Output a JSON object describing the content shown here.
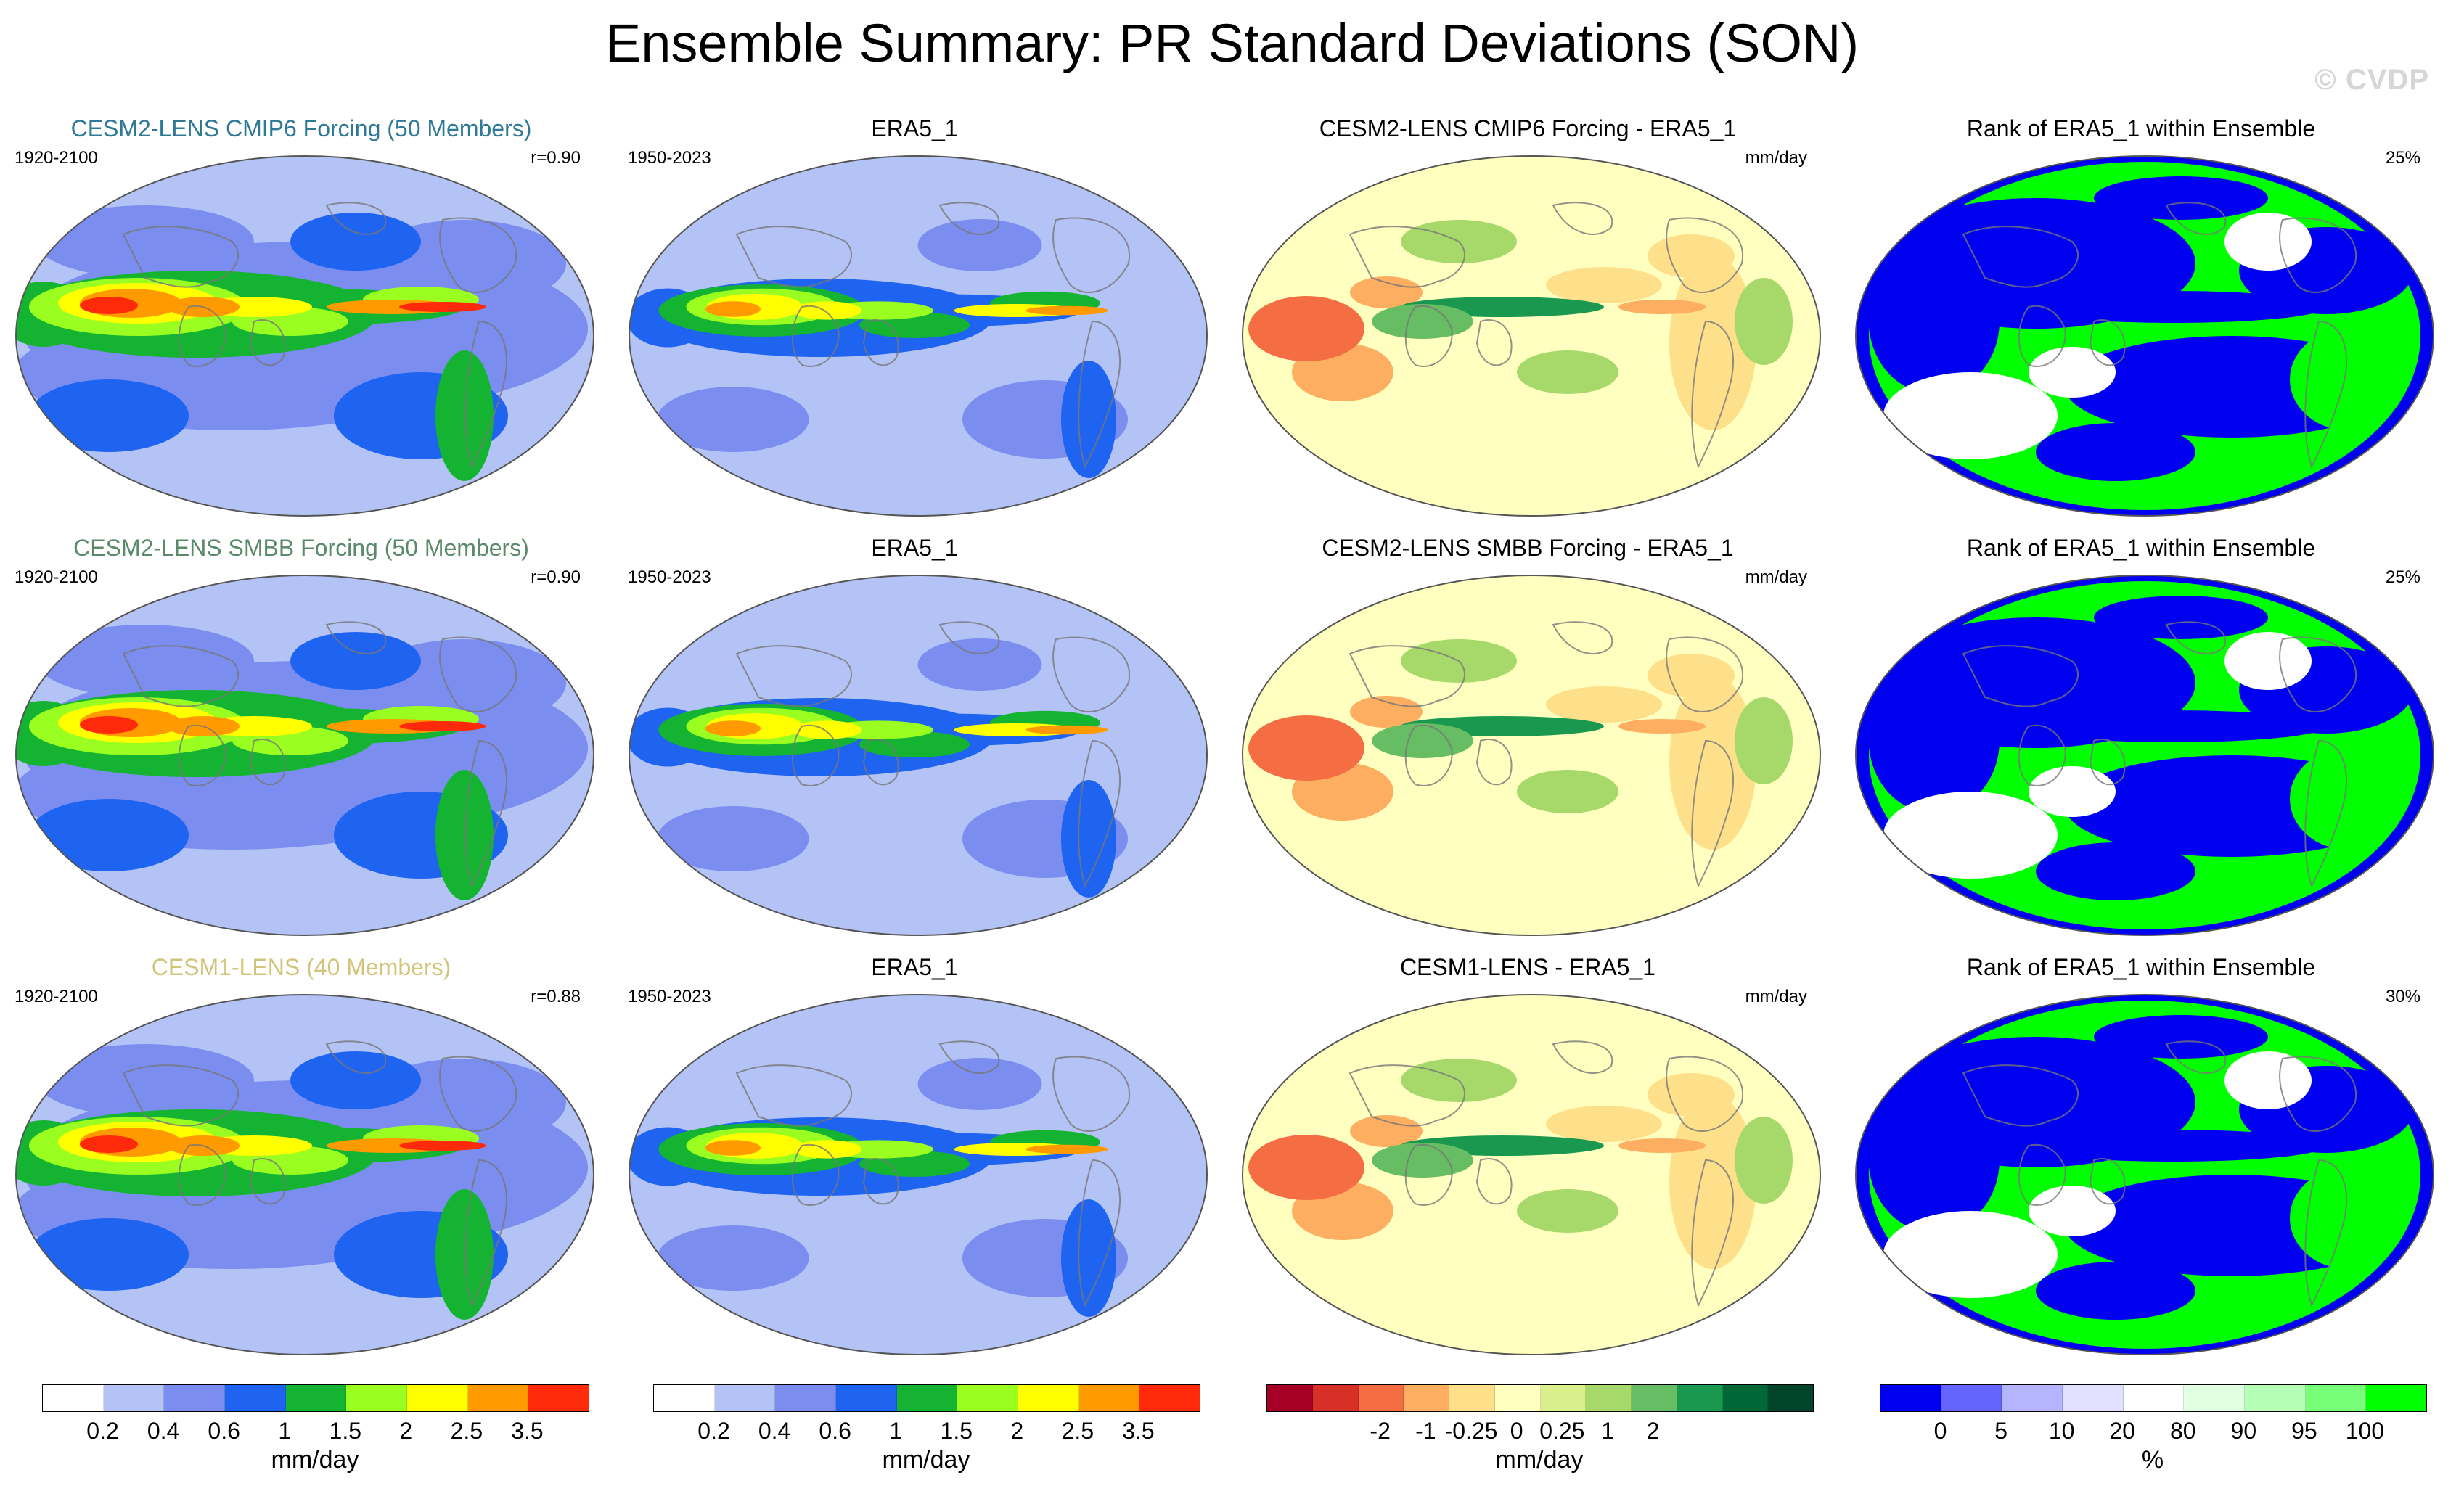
{
  "title": "Ensemble Summary: PR Standard Deviations (SON)",
  "watermark": "© CVDP",
  "rows": [
    {
      "model": {
        "title": "CESM2-LENS CMIP6 Forcing (50 Members)",
        "title_color": "#2e7a96",
        "period": "1920-2100",
        "corr": "r=0.90"
      },
      "obs": {
        "title": "ERA5_1",
        "period": "1950-2023"
      },
      "diff": {
        "title": "CESM2-LENS CMIP6 Forcing - ERA5_1",
        "unit": "mm/day"
      },
      "rank": {
        "title": "Rank of ERA5_1 within Ensemble",
        "pct": "25%"
      }
    },
    {
      "model": {
        "title": "CESM2-LENS SMBB Forcing (50 Members)",
        "title_color": "#5a8a6a",
        "period": "1920-2100",
        "corr": "r=0.90"
      },
      "obs": {
        "title": "ERA5_1",
        "period": "1950-2023"
      },
      "diff": {
        "title": "CESM2-LENS SMBB Forcing - ERA5_1",
        "unit": "mm/day"
      },
      "rank": {
        "title": "Rank of ERA5_1 within Ensemble",
        "pct": "25%"
      }
    },
    {
      "model": {
        "title": "CESM1-LENS (40 Members)",
        "title_color": "#d2c47a",
        "period": "1920-2100",
        "corr": "r=0.88"
      },
      "obs": {
        "title": "ERA5_1",
        "period": "1950-2023"
      },
      "diff": {
        "title": "CESM1-LENS - ERA5_1",
        "unit": "mm/day"
      },
      "rank": {
        "title": "Rank of ERA5_1 within Ensemble",
        "pct": "30%"
      }
    }
  ],
  "colorbars": [
    {
      "unit": "mm/day",
      "colors": [
        "#ffffff",
        "#b4c3f5",
        "#7b8ef0",
        "#1e64f0",
        "#14b432",
        "#9aff20",
        "#ffff00",
        "#ff9b00",
        "#ff2a0a"
      ],
      "ticks": [
        "0.2",
        "0.4",
        "0.6",
        "1",
        "1.5",
        "2",
        "2.5",
        "3.5"
      ]
    },
    {
      "unit": "mm/day",
      "colors": [
        "#ffffff",
        "#b4c3f5",
        "#7b8ef0",
        "#1e64f0",
        "#14b432",
        "#9aff20",
        "#ffff00",
        "#ff9b00",
        "#ff2a0a"
      ],
      "ticks": [
        "0.2",
        "0.4",
        "0.6",
        "1",
        "1.5",
        "2",
        "2.5",
        "3.5"
      ]
    },
    {
      "unit": "mm/day",
      "colors": [
        "#a50026",
        "#d73027",
        "#f46d43",
        "#fdae61",
        "#fee08b",
        "#ffffbf",
        "#d9ef8b",
        "#a6d96a",
        "#66bd63",
        "#1a9850",
        "#006837",
        "#00442a"
      ],
      "ticks": [
        "-2",
        "-1",
        "-0.25",
        "0",
        "0.25",
        "1",
        "2"
      ]
    },
    {
      "unit": "%",
      "colors": [
        "#0000f0",
        "#6464ff",
        "#b4b4ff",
        "#e1e1ff",
        "#ffffff",
        "#e1ffe1",
        "#b4ffb4",
        "#78ff78",
        "#00ff00"
      ],
      "ticks": [
        "0",
        "5",
        "10",
        "20",
        "80",
        "90",
        "95",
        "100"
      ]
    }
  ]
}
